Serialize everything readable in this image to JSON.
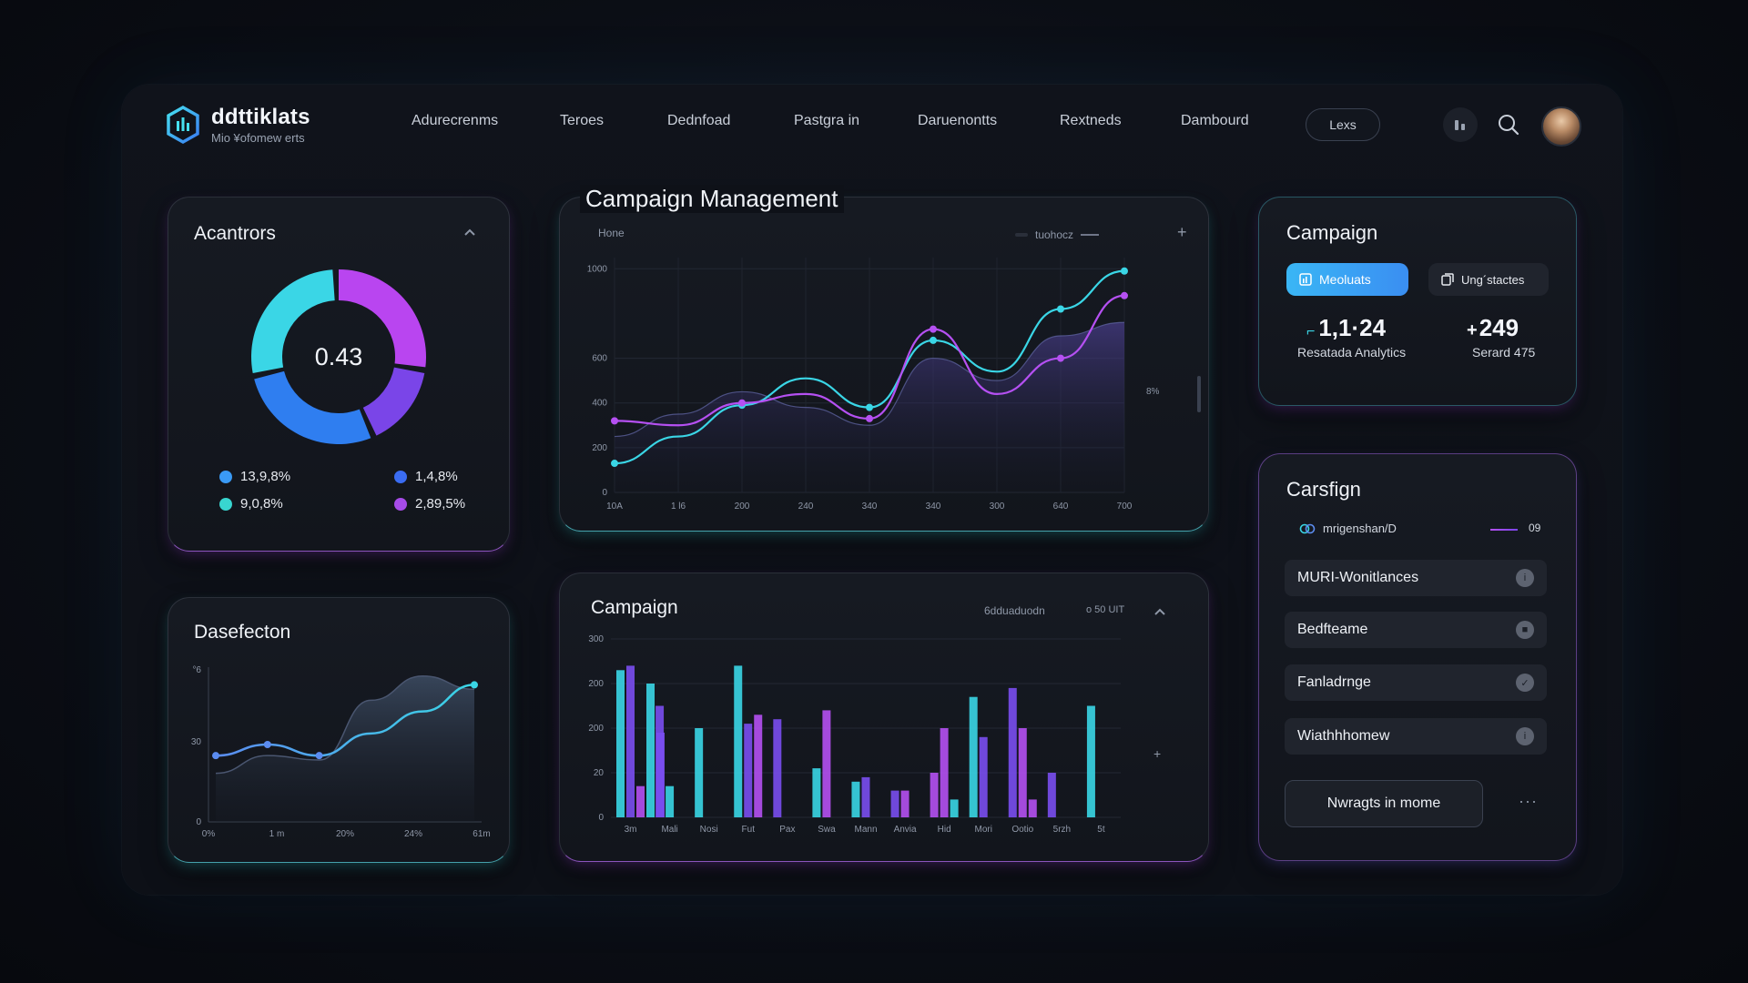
{
  "brand": {
    "title": "ddttiklats",
    "subtitle": "Mio ¥ofomew erts"
  },
  "nav": {
    "items": [
      "Adurecrenms",
      "Teroes",
      "Dednfoad",
      "Pastgra in",
      "Daruenontts",
      "Rextneds",
      "Dambourd"
    ],
    "button_label": "Lexs"
  },
  "header_icons": [
    "chart-icon",
    "search-icon"
  ],
  "donut_card": {
    "title": "Acantrors",
    "center_value": "0.43",
    "segments": [
      {
        "fraction": 0.28,
        "color": "#b945f0"
      },
      {
        "fraction": 0.16,
        "color": "#7a45e8"
      },
      {
        "fraction": 0.28,
        "color": "#2f7ef0"
      },
      {
        "fraction": 0.28,
        "color": "#3ad6e6"
      }
    ],
    "legend": [
      {
        "label": "13,9,8%",
        "color": "#3a9af5"
      },
      {
        "label": "1,4,8%",
        "color": "#3a6cf2"
      },
      {
        "label": "9,0,8%",
        "color": "#38d6d0"
      },
      {
        "label": "2,89,5%",
        "color": "#a64be8"
      }
    ]
  },
  "small_chart_card": {
    "title": "Dasefecton",
    "chart_data": {
      "type": "line",
      "y_ticks": [
        "°6\n(5",
        "30",
        "0"
      ],
      "x_ticks": [
        "0%",
        "1 m",
        "20%",
        "24%",
        "61m"
      ],
      "series": [
        {
          "values": [
            30,
            35,
            30,
            40,
            50,
            62
          ],
          "color": "#5b8cf0"
        },
        {
          "values": [
            22,
            30,
            28,
            55,
            66,
            60
          ],
          "color": "#3b4658"
        }
      ],
      "ylim": [
        0,
        70
      ]
    }
  },
  "main_chart_card": {
    "title": "Campaign Management",
    "legend_left": "Hone",
    "legend_right": "tuohocz",
    "right_label": "8%",
    "chart_data": {
      "type": "line",
      "y_ticks": [
        "1000",
        "600",
        "400",
        "200",
        "0"
      ],
      "x_ticks": [
        "10A",
        "1 l6",
        "200",
        "240",
        "340",
        "340",
        "300",
        "640",
        "700"
      ],
      "series": [
        {
          "color": "#3ad6e6",
          "values": [
            130,
            250,
            390,
            510,
            380,
            680,
            540,
            820,
            990
          ]
        },
        {
          "color": "#b550f2",
          "values": [
            320,
            300,
            400,
            440,
            330,
            730,
            440,
            600,
            880
          ]
        },
        {
          "color": "#6f7bc9",
          "values": [
            250,
            350,
            450,
            380,
            300,
            600,
            500,
            700,
            760
          ]
        }
      ],
      "ylim": [
        0,
        1050
      ]
    }
  },
  "bar_card": {
    "title": "Campaign",
    "legend_a": "6dduaduodn",
    "legend_b": "o 50 UIT",
    "chart_data": {
      "type": "bar",
      "y_ticks": [
        "300",
        "200",
        "200",
        "20",
        "0"
      ],
      "x_ticks": [
        "3m",
        "Mali",
        "Nosi",
        "Fut",
        "Pax",
        "Swa",
        "Mann",
        "Anvia",
        "Hid",
        "Mori",
        "Ootio",
        "5rzh",
        "5t"
      ],
      "bars": [
        [
          165,
          170,
          35,
          150,
          95,
          0
        ],
        [
          125,
          0,
          35,
          0,
          0,
          0
        ],
        [
          0,
          100,
          0,
          0,
          0,
          0
        ],
        [
          170,
          105,
          115,
          0,
          0,
          0
        ],
        [
          110,
          0,
          0,
          0,
          0,
          0
        ],
        [
          0,
          55,
          0,
          120,
          0,
          0
        ],
        [
          40,
          45,
          0,
          0,
          0,
          0
        ],
        [
          30,
          30,
          0,
          0,
          0,
          0
        ],
        [
          50,
          0,
          0,
          100,
          20,
          0
        ],
        [
          135,
          90,
          0,
          0,
          0,
          0
        ],
        [
          145,
          100,
          0,
          0,
          20,
          0
        ],
        [
          0,
          0,
          50,
          0,
          0,
          0
        ],
        [
          125,
          0,
          0,
          0,
          0,
          0
        ]
      ],
      "ylim": [
        0,
        200
      ]
    }
  },
  "campaign_stats": {
    "title": "Campaign",
    "tab_active": "Meoluats",
    "tab_inactive": "Ung´stactes",
    "stat1_value": "1,1·24",
    "stat1_prefix": "⌐",
    "stat1_label": "Resatada Analytics",
    "stat2_value": "249",
    "stat2_prefix": "+",
    "stat2_label": "Serard 475"
  },
  "campaign_list": {
    "title": "Carsfign",
    "filter_label": "mrigenshan/D",
    "filter_value": "09",
    "rows": [
      "MURI-Wonitlances",
      "Bedfteame",
      "Fanladrnge",
      "Wiathhhomew"
    ],
    "action_button": "Nwragts in mome",
    "more": "···"
  },
  "colors": {
    "cyan": "#3ad6e6",
    "purple": "#b550f2",
    "blue": "#3a7cf2",
    "button_active": "#3aa8f5"
  }
}
